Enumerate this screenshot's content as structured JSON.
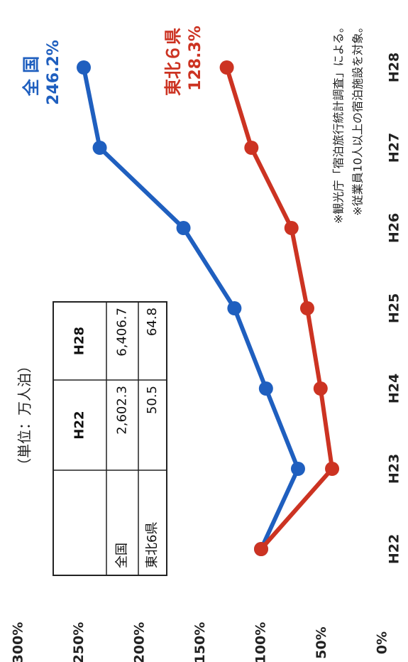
{
  "chart_data": {
    "type": "line",
    "subtitle": "（単位：万人泊）",
    "categories": [
      "H22",
      "H23",
      "H24",
      "H25",
      "H26",
      "H27",
      "H28"
    ],
    "series": [
      {
        "name": "全 国",
        "color": "#1f5fbf",
        "values": [
          100,
          69.6,
          96,
          122,
          164,
          233,
          246.2
        ],
        "value_labels": [
          null,
          null,
          null,
          null,
          null,
          null,
          "246.2%"
        ]
      },
      {
        "name": "東北６県",
        "color": "#cc3322",
        "values": [
          100,
          41.5,
          51,
          62,
          75,
          108,
          128.3
        ],
        "value_labels": [
          null,
          null,
          null,
          null,
          null,
          null,
          "128.3%"
        ]
      }
    ],
    "ylim": [
      0,
      300
    ],
    "yticks": [
      {
        "value": 0,
        "label": "0%"
      },
      {
        "value": 50,
        "label": "50%"
      },
      {
        "value": 100,
        "label": "100%"
      },
      {
        "value": 150,
        "label": "150%"
      },
      {
        "value": 200,
        "label": "200%"
      },
      {
        "value": 250,
        "label": "250%"
      },
      {
        "value": 300,
        "label": "300%"
      }
    ],
    "table": {
      "rows": [
        [
          "",
          "H22",
          "H28"
        ],
        [
          "全国",
          "2,602.3",
          "6,406.7"
        ],
        [
          "東北6県",
          "50.5",
          "64.8"
        ]
      ]
    },
    "notes": [
      "※観光庁「宿泊旅行統計調査」による。",
      "※従業員10人以上の宿泊施設を対象。"
    ]
  }
}
